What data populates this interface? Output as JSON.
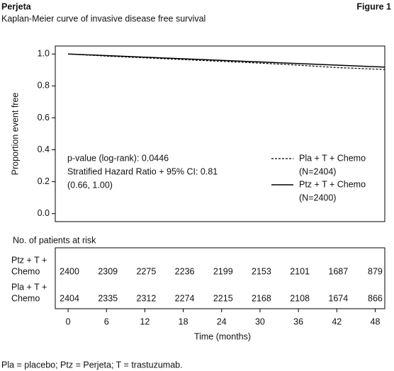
{
  "header": {
    "brand": "Perjeta",
    "figure": "Figure 1"
  },
  "chart_data": {
    "type": "line",
    "title": "Kaplan-Meier curve of invasive disease free survival",
    "y_label": "Proportion event free",
    "x_label": "Time (months)",
    "xlim": [
      -2,
      49.5
    ],
    "xticks": [
      0,
      6,
      12,
      18,
      24,
      30,
      36,
      42,
      48
    ],
    "ylim": [
      -0.05,
      1.05
    ],
    "yticks": [
      {
        "value": 0,
        "label": "0.0"
      },
      {
        "value": 0.2,
        "label": "0.2"
      },
      {
        "value": 0.4,
        "label": "0.4"
      },
      {
        "value": 0.6,
        "label": "0.6"
      },
      {
        "value": 0.8,
        "label": "0.8"
      },
      {
        "value": 1,
        "label": "1.0"
      }
    ],
    "series": [
      {
        "name": "Pla + T + Chemo",
        "n_label": "(N=2404)",
        "color": "#000000",
        "style": "dashed",
        "x": [
          0,
          6,
          12,
          18,
          24,
          30,
          36,
          42,
          49.5
        ],
        "values": [
          1.0,
          0.987,
          0.976,
          0.965,
          0.954,
          0.943,
          0.93,
          0.915,
          0.903
        ]
      },
      {
        "name": "Ptz + T + Chemo",
        "n_label": "(N=2400)",
        "color": "#000000",
        "style": "solid",
        "x": [
          0,
          6,
          12,
          18,
          24,
          30,
          36,
          42,
          49.5
        ],
        "values": [
          1.0,
          0.99,
          0.98,
          0.97,
          0.96,
          0.95,
          0.94,
          0.93,
          0.918
        ]
      }
    ],
    "annotation": [
      "p-value (log-rank): 0.0446",
      "Stratified Hazard Ratio + 95% CI: 0.81",
      "(0.66, 1.00)"
    ],
    "at_risk": {
      "title": "No. of patients at risk",
      "rows": [
        {
          "label": [
            "Ptz + T +",
            "Chemo"
          ],
          "counts": [
            2400,
            2309,
            2275,
            2236,
            2199,
            2153,
            2101,
            1687,
            879
          ]
        },
        {
          "label": [
            "Pla + T +",
            "Chemo"
          ],
          "counts": [
            2404,
            2335,
            2312,
            2274,
            2215,
            2168,
            2108,
            1674,
            866
          ]
        }
      ]
    }
  },
  "footnote": "Pla = placebo; Ptz = Perjeta; T = trastuzumab."
}
